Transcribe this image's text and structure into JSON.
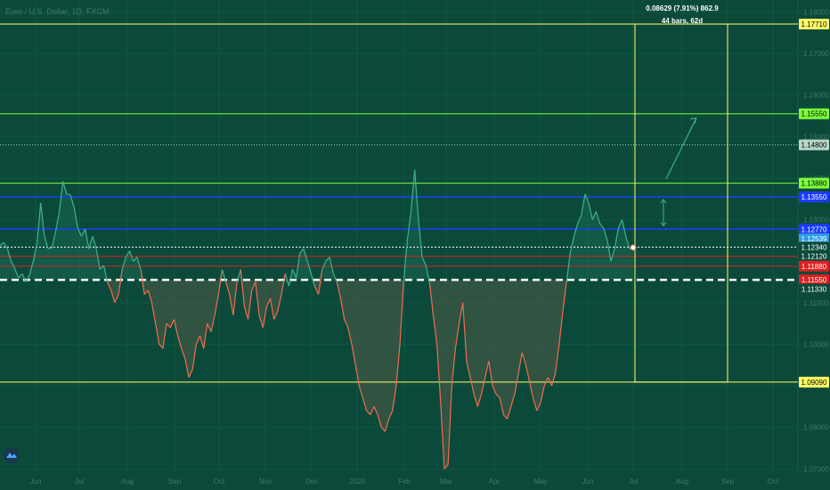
{
  "header": {
    "symbol_label": "Euro / U.S. Dollar, 1D, FXCM"
  },
  "measure": {
    "line1": "0.08629 (7.91%) 862.9",
    "line2": "44 bars, 62d"
  },
  "colors": {
    "background": "#0b4a3b",
    "up": "#3fb08f",
    "down": "#f26b4f",
    "yellow": "#ffff66",
    "green_level": "#7dff3a",
    "blue_level": "#1a3cff",
    "red_level": "#e02020",
    "price_label": "#2f9ee6"
  },
  "chart_data": {
    "type": "line",
    "x_ticks": [
      "Jun",
      "Jul",
      "Aug",
      "Sep",
      "Oct",
      "Nov",
      "Dec",
      "2020",
      "Feb",
      "Mar",
      "Apr",
      "May",
      "Jun",
      "Jul",
      "Aug",
      "Sep",
      "Oct"
    ],
    "y_ticks": [
      "1.07000",
      "1.08000",
      "1.09000",
      "1.10000",
      "1.11000",
      "1.12000",
      "1.13000",
      "1.14000",
      "1.15000",
      "1.16000",
      "1.17000",
      "1.18000"
    ],
    "ylim": [
      1.0692,
      1.1829
    ],
    "baseline": 1.1155,
    "series": [
      {
        "values": [
          1.1238,
          1.1245,
          1.123,
          1.12,
          1.1182,
          1.116,
          1.117,
          1.115,
          1.1168,
          1.12,
          1.1245,
          1.134,
          1.126,
          1.123,
          1.1232,
          1.127,
          1.1318,
          1.1392,
          1.1362,
          1.136,
          1.133,
          1.128,
          1.126,
          1.1278,
          1.123,
          1.126,
          1.123,
          1.118,
          1.119,
          1.115,
          1.113,
          1.11,
          1.112,
          1.118,
          1.121,
          1.1225,
          1.12,
          1.121,
          1.118,
          1.112,
          1.113,
          1.11,
          1.105,
          1.1,
          1.099,
          1.105,
          1.104,
          1.106,
          1.102,
          1.099,
          1.0965,
          1.092,
          1.094,
          1.1,
          1.102,
          1.099,
          1.105,
          1.103,
          1.107,
          1.112,
          1.118,
          1.115,
          1.112,
          1.107,
          1.115,
          1.118,
          1.109,
          1.106,
          1.113,
          1.115,
          1.107,
          1.104,
          1.109,
          1.111,
          1.106,
          1.108,
          1.112,
          1.117,
          1.114,
          1.118,
          1.116,
          1.122,
          1.123,
          1.12,
          1.117,
          1.114,
          1.112,
          1.118,
          1.12,
          1.121,
          1.117,
          1.115,
          1.111,
          1.106,
          1.104,
          1.1,
          1.095,
          1.09,
          1.087,
          1.084,
          1.083,
          1.085,
          1.083,
          1.08,
          1.079,
          1.082,
          1.084,
          1.09,
          1.1,
          1.115,
          1.125,
          1.132,
          1.142,
          1.13,
          1.121,
          1.119,
          1.115,
          1.107,
          1.1,
          1.086,
          1.07,
          1.071,
          1.09,
          1.099,
          1.105,
          1.11,
          1.096,
          1.092,
          1.088,
          1.085,
          1.088,
          1.092,
          1.096,
          1.09,
          1.088,
          1.087,
          1.083,
          1.082,
          1.085,
          1.088,
          1.093,
          1.098,
          1.095,
          1.091,
          1.087,
          1.084,
          1.086,
          1.09,
          1.092,
          1.09,
          1.093,
          1.1,
          1.108,
          1.115,
          1.122,
          1.126,
          1.129,
          1.131,
          1.1362,
          1.134,
          1.13,
          1.132,
          1.129,
          1.128,
          1.125,
          1.12,
          1.123,
          1.128,
          1.13,
          1.126,
          1.123,
          1.1233
        ]
      }
    ],
    "levels": [
      {
        "label": "1.17710",
        "color": "#ffff66",
        "text_color": "#000000"
      },
      {
        "label": "1.15550",
        "color": "#7dff3a",
        "text_color": "#000000"
      },
      {
        "label": "1.14800",
        "color": "#b9d6c9",
        "text_color": "#000000"
      },
      {
        "label": "1.13880",
        "color": "#7dff3a",
        "text_color": "#000000"
      },
      {
        "label": "1.13550",
        "color": "#1a3cff",
        "text_color": "#ffffff"
      },
      {
        "label": "1.12770",
        "color": "#1a3cff",
        "text_color": "#ffffff"
      },
      {
        "label": "1.12539",
        "color": "#2f9ee6",
        "text_color": "#ffffff"
      },
      {
        "label": "1.12340",
        "color": "#0b4a3b",
        "text_color": "#ffffff"
      },
      {
        "label": "1.12120",
        "color": "#0b4a3b",
        "text_color": "#ffffff"
      },
      {
        "label": "1.11880",
        "color": "#e02020",
        "text_color": "#ffffff"
      },
      {
        "label": "1.11550",
        "color": "#e02020",
        "text_color": "#ffffff"
      },
      {
        "label": "1.11330",
        "color": "#0b4a3b",
        "text_color": "#ffffff"
      },
      {
        "label": "1.09090",
        "color": "#ffff66",
        "text_color": "#000000"
      }
    ]
  }
}
